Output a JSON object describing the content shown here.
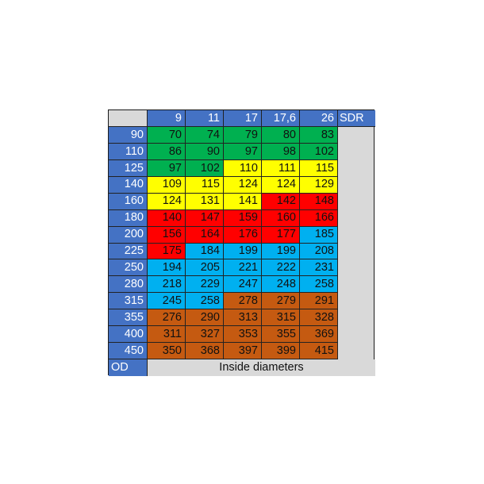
{
  "corner_label": "",
  "sdr_values": [
    "9",
    "11",
    "17",
    "17,6",
    "26"
  ],
  "sdr_label": "SDR",
  "od_label": "OD",
  "footer_label": "Inside diameters",
  "colors": {
    "header_blue": "#4472c4",
    "grey": "#d9d9d9",
    "green": "#00b050",
    "yellow": "#ffff00",
    "red": "#ff0000",
    "light_blue": "#00b0f0",
    "brown": "#c55a11"
  },
  "rows": [
    {
      "od": "90",
      "values": [
        "70",
        "74",
        "79",
        "80",
        "83"
      ],
      "colors": [
        "green",
        "green",
        "green",
        "green",
        "green"
      ]
    },
    {
      "od": "110",
      "values": [
        "86",
        "90",
        "97",
        "98",
        "102"
      ],
      "colors": [
        "green",
        "green",
        "green",
        "green",
        "green"
      ]
    },
    {
      "od": "125",
      "values": [
        "97",
        "102",
        "110",
        "111",
        "115"
      ],
      "colors": [
        "green",
        "green",
        "yellow",
        "yellow",
        "yellow"
      ]
    },
    {
      "od": "140",
      "values": [
        "109",
        "115",
        "124",
        "124",
        "129"
      ],
      "colors": [
        "yellow",
        "yellow",
        "yellow",
        "yellow",
        "yellow"
      ]
    },
    {
      "od": "160",
      "values": [
        "124",
        "131",
        "141",
        "142",
        "148"
      ],
      "colors": [
        "yellow",
        "yellow",
        "yellow",
        "red",
        "red"
      ]
    },
    {
      "od": "180",
      "values": [
        "140",
        "147",
        "159",
        "160",
        "166"
      ],
      "colors": [
        "red",
        "red",
        "red",
        "red",
        "red"
      ]
    },
    {
      "od": "200",
      "values": [
        "156",
        "164",
        "176",
        "177",
        "185"
      ],
      "colors": [
        "red",
        "red",
        "red",
        "red",
        "light_blue"
      ]
    },
    {
      "od": "225",
      "values": [
        "175",
        "184",
        "199",
        "199",
        "208"
      ],
      "colors": [
        "red",
        "light_blue",
        "light_blue",
        "light_blue",
        "light_blue"
      ]
    },
    {
      "od": "250",
      "values": [
        "194",
        "205",
        "221",
        "222",
        "231"
      ],
      "colors": [
        "light_blue",
        "light_blue",
        "light_blue",
        "light_blue",
        "light_blue"
      ]
    },
    {
      "od": "280",
      "values": [
        "218",
        "229",
        "247",
        "248",
        "258"
      ],
      "colors": [
        "light_blue",
        "light_blue",
        "light_blue",
        "light_blue",
        "light_blue"
      ]
    },
    {
      "od": "315",
      "values": [
        "245",
        "258",
        "278",
        "279",
        "291"
      ],
      "colors": [
        "light_blue",
        "light_blue",
        "brown",
        "brown",
        "brown"
      ]
    },
    {
      "od": "355",
      "values": [
        "276",
        "290",
        "313",
        "315",
        "328"
      ],
      "colors": [
        "brown",
        "brown",
        "brown",
        "brown",
        "brown"
      ]
    },
    {
      "od": "400",
      "values": [
        "311",
        "327",
        "353",
        "355",
        "369"
      ],
      "colors": [
        "brown",
        "brown",
        "brown",
        "brown",
        "brown"
      ]
    },
    {
      "od": "450",
      "values": [
        "350",
        "368",
        "397",
        "399",
        "415"
      ],
      "colors": [
        "brown",
        "brown",
        "brown",
        "brown",
        "brown"
      ]
    }
  ]
}
